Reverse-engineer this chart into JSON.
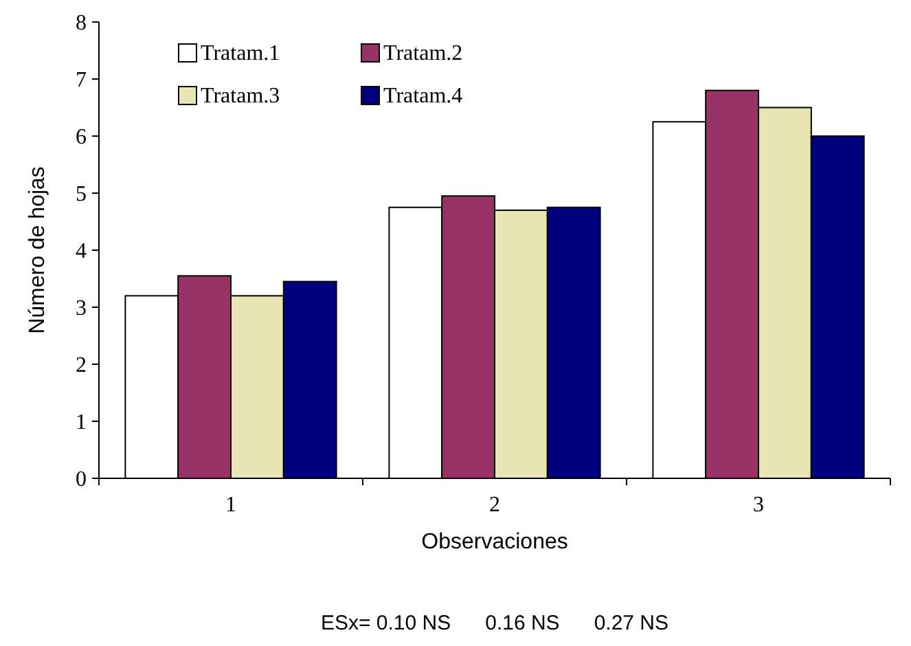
{
  "chart_data": {
    "type": "bar",
    "xlabel": "Observaciones",
    "ylabel": "Número de hojas",
    "categories": [
      "1",
      "2",
      "3"
    ],
    "series": [
      {
        "name": "Tratam.1",
        "color": "#ffffff",
        "values": [
          3.2,
          4.75,
          6.25
        ]
      },
      {
        "name": "Tratam.2",
        "color": "#993366",
        "values": [
          3.55,
          4.95,
          6.8
        ]
      },
      {
        "name": "Tratam.3",
        "color": "#e8e4b4",
        "values": [
          3.2,
          4.7,
          6.5
        ]
      },
      {
        "name": "Tratam.4",
        "color": "#000080",
        "values": [
          3.45,
          4.75,
          6.0
        ]
      }
    ],
    "ylim": [
      0,
      8
    ],
    "yticks": [
      0,
      1,
      2,
      3,
      4,
      5,
      6,
      7,
      8
    ],
    "legend": "top left",
    "grid": false,
    "annotations": [
      "ESx= 0.10 NS      0.16 NS      0.27 NS"
    ]
  }
}
